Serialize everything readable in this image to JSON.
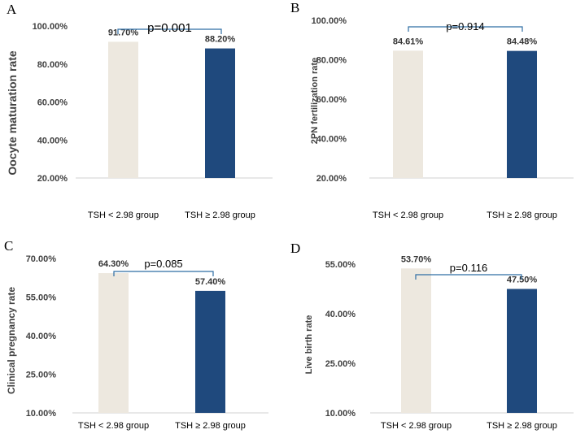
{
  "chart_data": [
    {
      "panel": "A",
      "type": "bar",
      "categories": [
        "TSH < 2.98 group",
        "TSH ≥ 2.98 group"
      ],
      "values": [
        91.7,
        88.2
      ],
      "value_labels": [
        "91.70%",
        "88.20%"
      ],
      "colors": [
        "#ede8df",
        "#1f497d"
      ],
      "ylabel": "Oocyte maturation rate",
      "ylim": [
        20,
        100
      ],
      "yticks": [
        "100.00%",
        "80.00%",
        "60.00%",
        "40.00%",
        "20.00%"
      ],
      "annotation": "p=0.001"
    },
    {
      "panel": "B",
      "type": "bar",
      "categories": [
        "TSH < 2.98 group",
        "TSH ≥ 2.98 group"
      ],
      "values": [
        84.61,
        84.48
      ],
      "value_labels": [
        "84.61%",
        "84.48%"
      ],
      "colors": [
        "#ede8df",
        "#1f497d"
      ],
      "ylabel": "2PN fertilization rate",
      "ylim": [
        20,
        100
      ],
      "yticks": [
        "100.00%",
        "80.00%",
        "60.00%",
        "40.00%",
        "20.00%"
      ],
      "annotation": "p=0.914"
    },
    {
      "panel": "C",
      "type": "bar",
      "categories": [
        "TSH < 2.98 group",
        "TSH ≥ 2.98 group"
      ],
      "values": [
        64.3,
        57.4
      ],
      "value_labels": [
        "64.30%",
        "57.40%"
      ],
      "colors": [
        "#ede8df",
        "#1f497d"
      ],
      "ylabel": "Clinical pregnancy rate",
      "ylim": [
        10,
        70
      ],
      "yticks": [
        "70.00%",
        "55.00%",
        "40.00%",
        "25.00%",
        "10.00%"
      ],
      "annotation": "p=0.085"
    },
    {
      "panel": "D",
      "type": "bar",
      "categories": [
        "TSH < 2.98 group",
        "TSH ≥ 2.98 group"
      ],
      "values": [
        53.7,
        47.5
      ],
      "value_labels": [
        "53.70%",
        "47.50%"
      ],
      "colors": [
        "#ede8df",
        "#1f497d"
      ],
      "ylabel": "Live birth rate",
      "ylim": [
        10,
        55
      ],
      "yticks": [
        "55.00%",
        "40.00%",
        "25.00%",
        "10.00%"
      ],
      "annotation": "p=0.116"
    }
  ]
}
